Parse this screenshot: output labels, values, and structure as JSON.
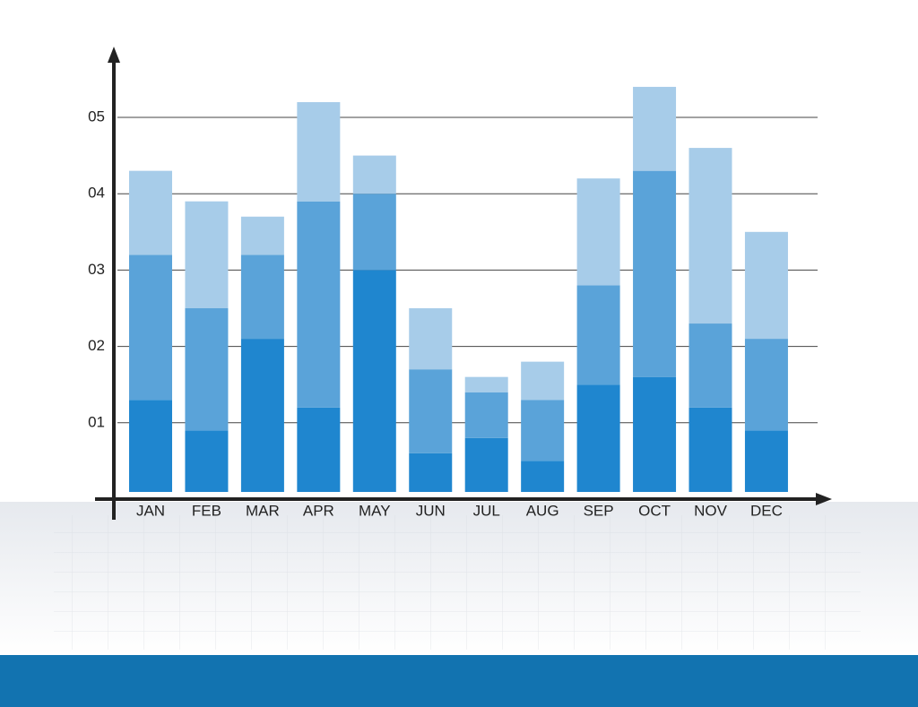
{
  "chart_data": {
    "type": "stacked-bar",
    "categories": [
      "JAN",
      "FEB",
      "MAR",
      "APR",
      "MAY",
      "JUN",
      "JUL",
      "AUG",
      "SEP",
      "OCT",
      "NOV",
      "DEC"
    ],
    "series": [
      {
        "color": "#1f86cf",
        "values": [
          1.3,
          0.9,
          2.1,
          1.2,
          3.0,
          0.6,
          0.8,
          0.5,
          1.5,
          1.6,
          1.2,
          0.9
        ]
      },
      {
        "color": "#5aa3d9",
        "values": [
          1.9,
          1.6,
          1.1,
          2.7,
          1.0,
          1.1,
          0.6,
          0.8,
          1.3,
          2.7,
          1.1,
          1.2
        ]
      },
      {
        "color": "#a7cce9",
        "values": [
          1.1,
          1.4,
          0.5,
          1.3,
          0.5,
          0.8,
          0.2,
          0.5,
          1.4,
          1.1,
          2.3,
          1.4
        ]
      }
    ],
    "ylim": [
      0,
      5.8
    ],
    "yticks": [
      {
        "value": 1,
        "label": "01"
      },
      {
        "value": 2,
        "label": "02"
      },
      {
        "value": 3,
        "label": "03"
      },
      {
        "value": 4,
        "label": "04"
      },
      {
        "value": 5,
        "label": "05"
      }
    ],
    "grid": true
  }
}
